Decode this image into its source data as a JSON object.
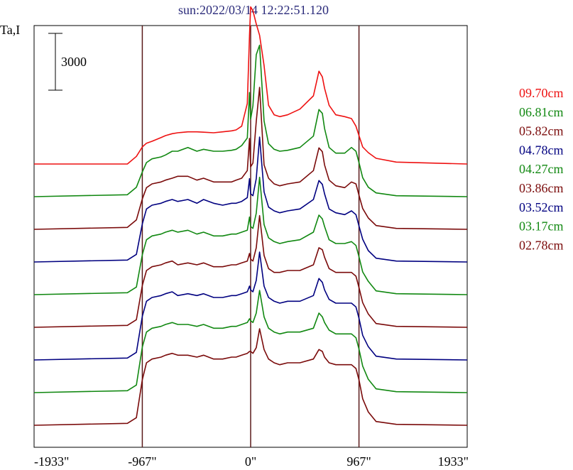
{
  "chart_data": {
    "type": "line",
    "title": "sun:2022/03/14 12:22:51.120",
    "ylabel": "Ta,I",
    "scale_bar_label": "3000",
    "xlim": [
      -1933,
      1933
    ],
    "x_ticks": [
      {
        "value": -1933,
        "label": "-1933\""
      },
      {
        "value": -967,
        "label": "-967\""
      },
      {
        "value": 0,
        "label": "0\""
      },
      {
        "value": 967,
        "label": "967\""
      },
      {
        "value": 1933,
        "label": "1933\""
      }
    ],
    "vertical_markers": [
      -967,
      0,
      967
    ],
    "vertical_marker_color": "#5a1a1a",
    "x_sample_points": [
      -1933,
      -1100,
      -1020,
      -967,
      -930,
      -880,
      -800,
      -760,
      -700,
      -650,
      -560,
      -480,
      -420,
      -330,
      -250,
      -170,
      -130,
      -80,
      -30,
      -10,
      0,
      20,
      50,
      80,
      120,
      160,
      210,
      260,
      330,
      440,
      560,
      610,
      640,
      660,
      700,
      760,
      840,
      900,
      940,
      967,
      1000,
      1050,
      1120,
      1300,
      1933
    ],
    "series": [
      {
        "name": "09.70cm",
        "color": "#ee1111",
        "offset": 0,
        "values": [
          0,
          0,
          400,
          900,
          1100,
          1200,
          1400,
          1500,
          1600,
          1650,
          1700,
          1700,
          1680,
          1650,
          1700,
          1750,
          1800,
          2000,
          3200,
          6800,
          8300,
          8100,
          7400,
          6800,
          5200,
          3100,
          2600,
          2500,
          2600,
          2900,
          3600,
          4900,
          4600,
          4000,
          3100,
          2600,
          2500,
          2400,
          2000,
          1500,
          900,
          600,
          300,
          100,
          0
        ]
      },
      {
        "name": "06.81cm",
        "color": "#118811",
        "offset": 1,
        "values": [
          0,
          100,
          500,
          1300,
          1800,
          2000,
          2100,
          2200,
          2400,
          2400,
          2600,
          2400,
          2500,
          2400,
          2400,
          2450,
          2500,
          2700,
          3100,
          5500,
          4100,
          4800,
          7500,
          8000,
          4000,
          2800,
          2500,
          2400,
          2450,
          2600,
          3200,
          4600,
          4400,
          3600,
          2600,
          2300,
          2300,
          2600,
          2400,
          1800,
          1000,
          500,
          200,
          50,
          0
        ]
      },
      {
        "name": "05.82cm",
        "color": "#7a0a0a",
        "offset": 2,
        "values": [
          0,
          100,
          500,
          1600,
          2200,
          2400,
          2500,
          2600,
          2700,
          2800,
          2800,
          2600,
          2700,
          2500,
          2500,
          2500,
          2600,
          2700,
          3100,
          4800,
          3300,
          3500,
          5700,
          7500,
          3400,
          2700,
          2400,
          2300,
          2400,
          2500,
          3100,
          4300,
          4100,
          3400,
          2600,
          2300,
          2200,
          2500,
          2400,
          1800,
          1100,
          600,
          200,
          50,
          0
        ]
      },
      {
        "name": "04.78cm",
        "color": "#000080",
        "offset": 3,
        "values": [
          0,
          100,
          400,
          2000,
          2800,
          3000,
          3100,
          3200,
          3300,
          3200,
          3300,
          3100,
          3300,
          3100,
          3000,
          3100,
          3100,
          3200,
          3400,
          4400,
          3600,
          3500,
          4400,
          6600,
          3700,
          2900,
          2700,
          2600,
          2700,
          2800,
          3300,
          4300,
          4100,
          3600,
          2800,
          2600,
          2500,
          2700,
          2500,
          1900,
          1200,
          600,
          200,
          50,
          0
        ]
      },
      {
        "name": "04.27cm",
        "color": "#118811",
        "offset": 4,
        "values": [
          0,
          100,
          400,
          2100,
          2900,
          3100,
          3200,
          3300,
          3400,
          3300,
          3400,
          3200,
          3300,
          3100,
          3100,
          3200,
          3200,
          3300,
          3400,
          4100,
          3600,
          3500,
          4300,
          6200,
          3700,
          3000,
          2800,
          2700,
          2800,
          2900,
          3300,
          4200,
          4000,
          3600,
          2900,
          2700,
          2700,
          2800,
          2600,
          2000,
          1200,
          700,
          200,
          50,
          0
        ]
      },
      {
        "name": "03.86cm",
        "color": "#7a0a0a",
        "offset": 5,
        "values": [
          0,
          100,
          400,
          2200,
          3000,
          3200,
          3300,
          3400,
          3500,
          3300,
          3400,
          3300,
          3400,
          3200,
          3200,
          3300,
          3300,
          3400,
          3500,
          3900,
          3600,
          3500,
          4200,
          5900,
          3800,
          3100,
          2900,
          2900,
          3000,
          3000,
          3300,
          4200,
          4100,
          3700,
          3100,
          2900,
          2900,
          2900,
          2700,
          2100,
          1300,
          700,
          200,
          50,
          0
        ]
      },
      {
        "name": "03.52cm",
        "color": "#000080",
        "offset": 6,
        "values": [
          0,
          100,
          400,
          2300,
          3100,
          3300,
          3400,
          3500,
          3600,
          3400,
          3500,
          3400,
          3500,
          3300,
          3300,
          3400,
          3400,
          3500,
          3600,
          3900,
          3700,
          3600,
          4200,
          5700,
          3900,
          3300,
          3100,
          3000,
          3100,
          3100,
          3400,
          4300,
          4100,
          3700,
          3200,
          3000,
          3000,
          3000,
          2800,
          2200,
          1300,
          700,
          200,
          50,
          0
        ]
      },
      {
        "name": "03.17cm",
        "color": "#118811",
        "offset": 7,
        "values": [
          0,
          100,
          400,
          2400,
          3200,
          3400,
          3500,
          3600,
          3700,
          3600,
          3600,
          3500,
          3600,
          3400,
          3400,
          3500,
          3500,
          3600,
          3700,
          3900,
          3800,
          3700,
          4200,
          5400,
          4000,
          3400,
          3200,
          3100,
          3200,
          3200,
          3400,
          4200,
          4000,
          3700,
          3300,
          3100,
          3100,
          3100,
          2900,
          2300,
          1400,
          700,
          200,
          50,
          0
        ]
      },
      {
        "name": "02.78cm",
        "color": "#7a0a0a",
        "offset": 8,
        "values": [
          0,
          100,
          400,
          2400,
          3300,
          3500,
          3600,
          3700,
          3800,
          3700,
          3700,
          3600,
          3700,
          3500,
          3500,
          3600,
          3600,
          3700,
          3800,
          3900,
          3900,
          3800,
          4100,
          5100,
          4000,
          3500,
          3300,
          3200,
          3300,
          3300,
          3500,
          4000,
          3900,
          3600,
          3300,
          3200,
          3200,
          3200,
          3000,
          2400,
          1400,
          700,
          200,
          50,
          0
        ]
      }
    ]
  }
}
